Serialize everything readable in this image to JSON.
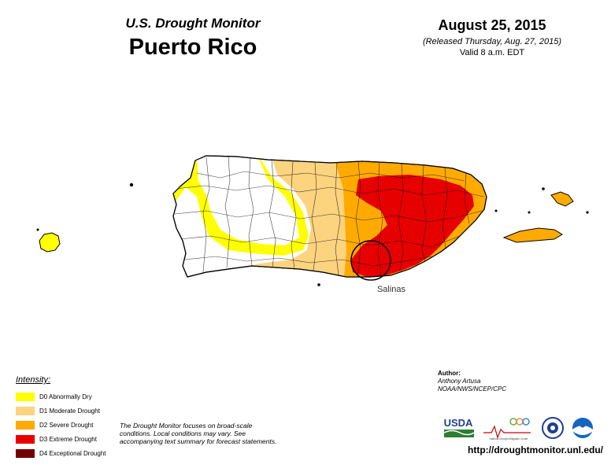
{
  "header": {
    "monitor_title": "U.S. Drought Monitor",
    "region_title": "Puerto Rico",
    "date": "August 25, 2015",
    "release_line": "(Released Thursday, Aug. 27, 2015)",
    "valid_line": "Valid 8 a.m. EDT"
  },
  "map": {
    "callout_label": "Salinas"
  },
  "legend": {
    "title": "Intensity:",
    "items": [
      {
        "label": "D0 Abnormally Dry",
        "color": "#ffff00"
      },
      {
        "label": "D1 Moderate Drought",
        "color": "#fcd37f"
      },
      {
        "label": "D2 Severe Drought",
        "color": "#ffaa00"
      },
      {
        "label": "D3 Extreme Drought",
        "color": "#e60000"
      },
      {
        "label": "D4 Exceptional Drought",
        "color": "#730000"
      }
    ]
  },
  "disclaimer": "The Drought Monitor focuses on broad-scale conditions. Local conditions may vary. See accompanying text summary for forecast statements.",
  "author": {
    "label": "Author:",
    "name": "Anthony Artusa",
    "org": "NOAA/NWS/NCEP/CPC"
  },
  "logos": {
    "usda": "USDA",
    "ndmc": "National Drought Mitigation Center"
  },
  "url": "http://droughtmonitor.unl.edu/"
}
